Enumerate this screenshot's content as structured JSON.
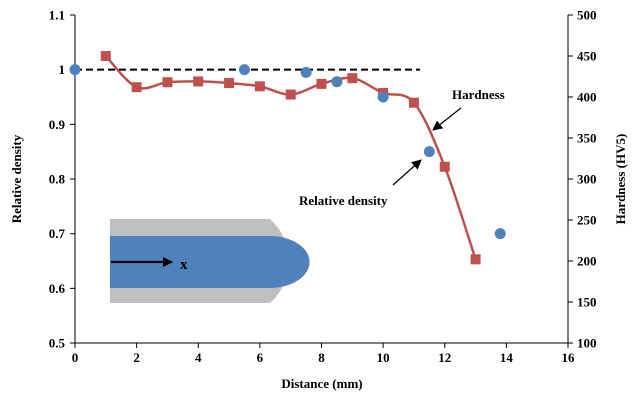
{
  "chart_data": {
    "type": "scatter",
    "xlabel": "Distance (mm)",
    "ylabel": "Relative density",
    "y2label": "Hardness (HV5)",
    "xlim": [
      0,
      16
    ],
    "ylim": [
      0.5,
      1.1
    ],
    "y2lim": [
      100,
      500
    ],
    "x_ticks": [
      "0",
      "2",
      "4",
      "6",
      "8",
      "10",
      "12",
      "14",
      "16"
    ],
    "y_ticks": [
      "0.5",
      "0.6",
      "0.7",
      "0.8",
      "0.9",
      "1",
      "1.1"
    ],
    "y2_ticks": [
      "100",
      "150",
      "200",
      "250",
      "300",
      "350",
      "400",
      "450",
      "500"
    ],
    "grid": false,
    "reference_line": {
      "y": 1.0,
      "x_range": [
        0,
        11.2
      ],
      "style": "dashed"
    },
    "series": [
      {
        "name": "Relative density",
        "axis": "left",
        "marker": "circle",
        "color": "#4f81bd",
        "x": [
          0,
          5.5,
          7.5,
          8.5,
          10,
          11.5,
          13.8
        ],
        "y": [
          1.0,
          1.0,
          0.995,
          0.978,
          0.95,
          0.85,
          0.7
        ]
      },
      {
        "name": "Hardness",
        "axis": "right",
        "marker": "square",
        "line": "smooth",
        "color": "#c0504d",
        "x": [
          1,
          2,
          3,
          4,
          5,
          6,
          7,
          8,
          9,
          10,
          11,
          12,
          13
        ],
        "y": [
          450,
          412,
          418,
          419,
          417,
          413,
          403,
          416,
          423,
          405,
          393,
          315,
          202
        ]
      }
    ],
    "annotations": [
      {
        "text": "Hardness",
        "arrow_to": {
          "x": 11.8,
          "y2": 355
        }
      },
      {
        "text": "Relative density",
        "arrow_to": {
          "x": 11.3,
          "y": 0.84
        }
      }
    ],
    "inset": {
      "label": "x",
      "colors": {
        "shell": "#bfbfbf",
        "core": "#4f81bd"
      }
    }
  }
}
